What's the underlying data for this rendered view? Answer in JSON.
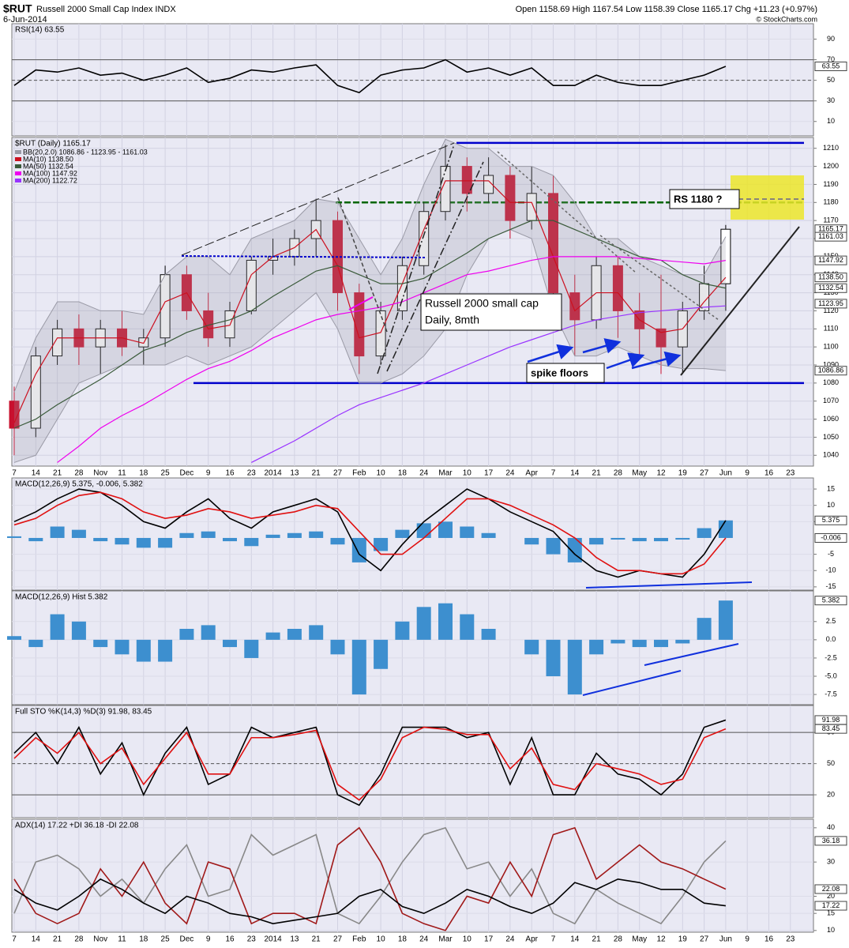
{
  "header": {
    "symbol": "$RUT",
    "name": "Russell 2000 Small Cap Index INDX",
    "date": "6-Jun-2014",
    "quote": "Open 1158.69 High 1167.54 Low 1158.39 Close 1165.17 Chg +11.23 (+0.97%)",
    "credit": "© StockCharts.com"
  },
  "chart_data": [
    {
      "type": "line",
      "title": "RSI(14) 63.55",
      "ylim": [
        -4,
        105
      ],
      "yticks": [
        10,
        30,
        50,
        70,
        90
      ],
      "hlines": [
        {
          "value": 70
        },
        {
          "value": 50,
          "dashed": true
        },
        {
          "value": 30
        }
      ],
      "series": [
        {
          "color": "#000000",
          "values": [
            45,
            60,
            58,
            62,
            55,
            57,
            50,
            55,
            62,
            48,
            52,
            60,
            58,
            62,
            65,
            45,
            38,
            55,
            60,
            62,
            70,
            58,
            62,
            55,
            62,
            45,
            45,
            55,
            48,
            45,
            45,
            50,
            55,
            63.55,
            null,
            null,
            null
          ]
        }
      ],
      "tags": [
        63.55
      ]
    },
    {
      "type": "candlestick",
      "title": "$RUT (Daily) 1165.17",
      "ylim": [
        1034,
        1216
      ],
      "yticks": [
        1040,
        1050,
        1060,
        1070,
        1080,
        1090,
        1100,
        1110,
        1120,
        1130,
        1140,
        1150,
        1160,
        1170,
        1180,
        1190,
        1200,
        1210
      ],
      "grid": true,
      "categories": [
        "7",
        "14",
        "21",
        "28",
        "Nov",
        "11",
        "18",
        "25",
        "Dec",
        "9",
        "16",
        "23",
        "2014",
        "13",
        "21",
        "27",
        "Feb",
        "10",
        "18",
        "24",
        "Mar",
        "10",
        "17",
        "24",
        "Apr",
        "7",
        "14",
        "21",
        "28",
        "May",
        "12",
        "19",
        "27",
        "Jun",
        "9",
        "16",
        "23"
      ],
      "series": [
        {
          "open": [
            1070,
            1055,
            1095,
            1110,
            1100,
            1110,
            1100,
            1105,
            1140,
            1120,
            1105,
            1120,
            1148,
            1150,
            1160,
            1170,
            1130,
            1095,
            1120,
            1145,
            1175,
            1200,
            1185,
            1195,
            1170,
            1185,
            1130,
            1115,
            1145,
            1120,
            1110,
            1100,
            1120,
            1135,
            null,
            null,
            null
          ],
          "high": [
            1078,
            1100,
            1115,
            1118,
            1115,
            1120,
            1110,
            1145,
            1145,
            1130,
            1125,
            1150,
            1160,
            1165,
            1182,
            1175,
            1135,
            1125,
            1150,
            1180,
            1212,
            1205,
            1205,
            1200,
            1200,
            1195,
            1140,
            1150,
            1150,
            1130,
            1140,
            1125,
            1145,
            1167.54,
            null,
            null,
            null
          ],
          "low": [
            1040,
            1050,
            1090,
            1090,
            1085,
            1095,
            1090,
            1100,
            1115,
            1100,
            1100,
            1118,
            1140,
            1145,
            1150,
            1120,
            1085,
            1090,
            1115,
            1140,
            1170,
            1175,
            1180,
            1160,
            1165,
            1120,
            1095,
            1110,
            1105,
            1095,
            1085,
            1085,
            1115,
            1120,
            null,
            null,
            null
          ],
          "close": [
            1055,
            1095,
            1110,
            1100,
            1110,
            1100,
            1105,
            1140,
            1120,
            1105,
            1120,
            1148,
            1150,
            1160,
            1170,
            1130,
            1095,
            1120,
            1145,
            1175,
            1200,
            1185,
            1195,
            1170,
            1185,
            1130,
            1115,
            1145,
            1120,
            1110,
            1100,
            1120,
            1135,
            1165.17,
            null,
            null,
            null
          ]
        },
        {
          "name": "BB(20,2.0) 1086.86 - 1123.95 - 1161.03",
          "color": "#9a9aa6",
          "upper": [
            1075,
            1105,
            1125,
            1125,
            1120,
            1120,
            1118,
            1140,
            1150,
            1150,
            1140,
            1160,
            1165,
            1170,
            1182,
            1180,
            1160,
            1140,
            1160,
            1190,
            1215,
            1210,
            1210,
            1200,
            1200,
            1195,
            1180,
            1160,
            1160,
            1150,
            1145,
            1140,
            1140,
            1161.03,
            null,
            null,
            null
          ],
          "lower": [
            1036,
            1040,
            1060,
            1080,
            1085,
            1090,
            1090,
            1090,
            1095,
            1090,
            1095,
            1100,
            1110,
            1120,
            1130,
            1110,
            1080,
            1080,
            1085,
            1095,
            1110,
            1140,
            1160,
            1165,
            1160,
            1120,
            1095,
            1095,
            1100,
            1095,
            1090,
            1088,
            1088,
            1086.86,
            null,
            null,
            null
          ]
        },
        {
          "name": "MA(10) 1138.50",
          "color": "#cc1020",
          "values": [
            1058,
            1085,
            1105,
            1105,
            1105,
            1105,
            1102,
            1125,
            1130,
            1110,
            1112,
            1140,
            1150,
            1155,
            1165,
            1145,
            1105,
            1108,
            1135,
            1165,
            1192,
            1192,
            1192,
            1180,
            1180,
            1150,
            1120,
            1130,
            1130,
            1115,
            1108,
            1110,
            1125,
            1138.5,
            null,
            null,
            null
          ]
        },
        {
          "name": "MA(50) 1132.54",
          "color": "#3a5a3a",
          "values": [
            1055,
            1060,
            1068,
            1075,
            1082,
            1090,
            1098,
            1102,
            1108,
            1112,
            1115,
            1120,
            1128,
            1135,
            1142,
            1145,
            1140,
            1135,
            1135,
            1138,
            1145,
            1152,
            1160,
            1165,
            1170,
            1170,
            1165,
            1160,
            1155,
            1150,
            1148,
            1140,
            1135,
            1132.54,
            null,
            null,
            null
          ]
        },
        {
          "name": "MA(100) 1147.92",
          "color": "#ee00ee",
          "values": [
            null,
            null,
            1036,
            1045,
            1055,
            1062,
            1068,
            1075,
            1082,
            1088,
            1092,
            1098,
            1105,
            1110,
            1115,
            1118,
            1120,
            1122,
            1125,
            1130,
            1135,
            1140,
            1142,
            1145,
            1148,
            1150,
            1150,
            1150,
            1150,
            1149,
            1148,
            1147,
            1146,
            1147.92,
            null,
            null,
            null
          ]
        },
        {
          "name": "MA(200) 1122.72",
          "color": "#9933ff",
          "values": [
            null,
            null,
            null,
            null,
            null,
            null,
            null,
            null,
            null,
            null,
            null,
            1036,
            1042,
            1048,
            1055,
            1062,
            1068,
            1072,
            1076,
            1080,
            1085,
            1090,
            1095,
            1100,
            1104,
            1108,
            1112,
            1115,
            1117,
            1119,
            1120,
            1121,
            1122,
            1122.72,
            null,
            null,
            null
          ]
        }
      ],
      "hlines": [
        {
          "value": 1213,
          "color": "#0000cc"
        },
        {
          "value": 1080,
          "color": "#0000cc"
        },
        {
          "value": 1180,
          "color": "#006600",
          "dashed": true
        }
      ],
      "tags": [
        {
          "value": 1165.17,
          "label": "1165.17"
        },
        {
          "value": 1161.03,
          "label": "1161.03"
        },
        {
          "value": 1147.92,
          "label": "1147.92"
        },
        {
          "value": 1138.5,
          "label": "1138.50"
        },
        {
          "value": 1132.54,
          "label": "1132.54"
        },
        {
          "value": 1123.95,
          "label": "1123.95"
        },
        {
          "value": 1086.86,
          "label": "1086.86"
        }
      ],
      "annotations": [
        "RS 1180 ?",
        "Russell 2000 small cap",
        "Daily, 8mth",
        "spike floors"
      ]
    },
    {
      "type": "macd",
      "title": "MACD(12,26,9) 5.375, -0.006, 5.382",
      "ylim": [
        -16,
        18.4
      ],
      "yticks": [
        15,
        10,
        5,
        -5,
        -10,
        -15
      ],
      "series": [
        {
          "type": "bar",
          "color": "#3d8fcf",
          "values": [
            0.5,
            -1,
            3.5,
            2.5,
            -1,
            -2,
            -3,
            -3,
            1.5,
            2,
            -1,
            -2.5,
            1,
            1.5,
            2,
            -2,
            -7.5,
            -4,
            2.5,
            4.5,
            5,
            3.5,
            1.5,
            0,
            -2,
            -5,
            -7.5,
            -2,
            -0.5,
            -1,
            -1,
            -0.5,
            3,
            5.382,
            null,
            null,
            null
          ]
        },
        {
          "color": "#000000",
          "values": [
            5,
            8,
            12,
            15,
            14,
            10,
            5,
            3,
            8,
            12,
            6,
            3,
            8,
            10,
            12,
            8,
            -5,
            -10,
            -2,
            5,
            10,
            15,
            12,
            8,
            5,
            2,
            -5,
            -10,
            -12,
            -10,
            -11,
            -12,
            -5,
            5.375,
            null,
            null,
            null
          ]
        },
        {
          "color": "#e01010",
          "values": [
            4,
            6,
            10,
            13,
            14,
            12,
            8,
            6,
            7,
            9,
            8,
            6,
            7,
            8,
            10,
            9,
            2,
            -5,
            -5,
            0,
            6,
            12,
            12,
            10,
            7,
            4,
            0,
            -6,
            -10,
            -10,
            -11,
            -11,
            -8,
            -0.006,
            null,
            null,
            null
          ]
        }
      ],
      "tags": [
        5.375,
        -0.006
      ]
    },
    {
      "type": "bar",
      "title": "MACD(12,26,9) Hist 5.382",
      "ylim": [
        -8.9,
        6.7
      ],
      "yticks": [
        2.5,
        {
          "value": 0,
          "label": "0.0"
        },
        -2.5,
        {
          "value": -5,
          "label": "-5.0"
        },
        -7.5
      ],
      "series": [
        {
          "type": "bar",
          "color": "#3d8fcf",
          "values": [
            0.5,
            -1,
            3.5,
            2.5,
            -1,
            -2,
            -3,
            -3,
            1.5,
            2,
            -1,
            -2.5,
            1,
            1.5,
            2,
            -2,
            -7.5,
            -4,
            2.5,
            4.5,
            5,
            3.5,
            1.5,
            0,
            -2,
            -5,
            -7.5,
            -2,
            -0.5,
            -1,
            -1,
            -0.5,
            3,
            5.382,
            null,
            null,
            null
          ]
        }
      ],
      "tags": [
        5.382
      ]
    },
    {
      "type": "line",
      "title": "Full STO %K(14,3) %D(3) 91.98, 83.45",
      "ylim": [
        -2,
        106
      ],
      "yticks": [
        20,
        50,
        80
      ],
      "hlines": [
        {
          "value": 80
        },
        {
          "value": 50,
          "dashed": true
        },
        {
          "value": 20
        }
      ],
      "series": [
        {
          "color": "#000000",
          "values": [
            60,
            80,
            50,
            85,
            40,
            70,
            20,
            60,
            85,
            30,
            40,
            85,
            75,
            80,
            85,
            20,
            10,
            40,
            85,
            85,
            85,
            75,
            80,
            30,
            75,
            20,
            20,
            60,
            40,
            35,
            20,
            40,
            85,
            91.98,
            null,
            null,
            null
          ]
        },
        {
          "color": "#e01010",
          "values": [
            55,
            75,
            60,
            80,
            50,
            65,
            30,
            55,
            80,
            40,
            40,
            75,
            75,
            78,
            82,
            30,
            15,
            35,
            75,
            85,
            83,
            78,
            78,
            45,
            65,
            30,
            25,
            50,
            45,
            40,
            30,
            35,
            75,
            83.45,
            null,
            null,
            null
          ]
        }
      ],
      "tags": [
        91.98,
        83.45
      ]
    },
    {
      "type": "line",
      "title": "ADX(14) 17.22 +DI 36.18 -DI 22.08",
      "ylim": [
        9.5,
        42.5
      ],
      "yticks": [
        10,
        15,
        20,
        30,
        40
      ],
      "categories": [
        "7",
        "14",
        "21",
        "28",
        "Nov",
        "11",
        "18",
        "25",
        "Dec",
        "9",
        "16",
        "23",
        "2014",
        "13",
        "21",
        "27",
        "Feb",
        "10",
        "18",
        "24",
        "Mar",
        "10",
        "17",
        "24",
        "Apr",
        "7",
        "14",
        "21",
        "28",
        "May",
        "12",
        "19",
        "27",
        "Jun",
        "9",
        "16",
        "23"
      ],
      "series": [
        {
          "color": "#888888",
          "values": [
            15,
            30,
            32,
            28,
            20,
            25,
            18,
            28,
            35,
            20,
            22,
            38,
            32,
            35,
            38,
            15,
            12,
            20,
            30,
            38,
            40,
            28,
            30,
            20,
            28,
            15,
            12,
            22,
            18,
            15,
            12,
            20,
            30,
            36.18,
            null,
            null,
            null
          ]
        },
        {
          "color": "#a01818",
          "values": [
            25,
            15,
            12,
            15,
            28,
            20,
            30,
            18,
            12,
            30,
            28,
            12,
            15,
            15,
            12,
            35,
            40,
            30,
            15,
            12,
            10,
            20,
            18,
            30,
            20,
            38,
            40,
            25,
            30,
            35,
            30,
            28,
            25,
            22.08,
            null,
            null,
            null
          ]
        },
        {
          "color": "#000000",
          "values": [
            22,
            18,
            16,
            20,
            25,
            22,
            18,
            15,
            20,
            18,
            15,
            14,
            12,
            13,
            14,
            15,
            20,
            22,
            17,
            15,
            18,
            22,
            20,
            17,
            15,
            18,
            24,
            22,
            25,
            24,
            22,
            22,
            18,
            17.22,
            null,
            null,
            null
          ]
        }
      ],
      "tags": [
        36.18,
        22.08,
        17.22
      ]
    }
  ]
}
